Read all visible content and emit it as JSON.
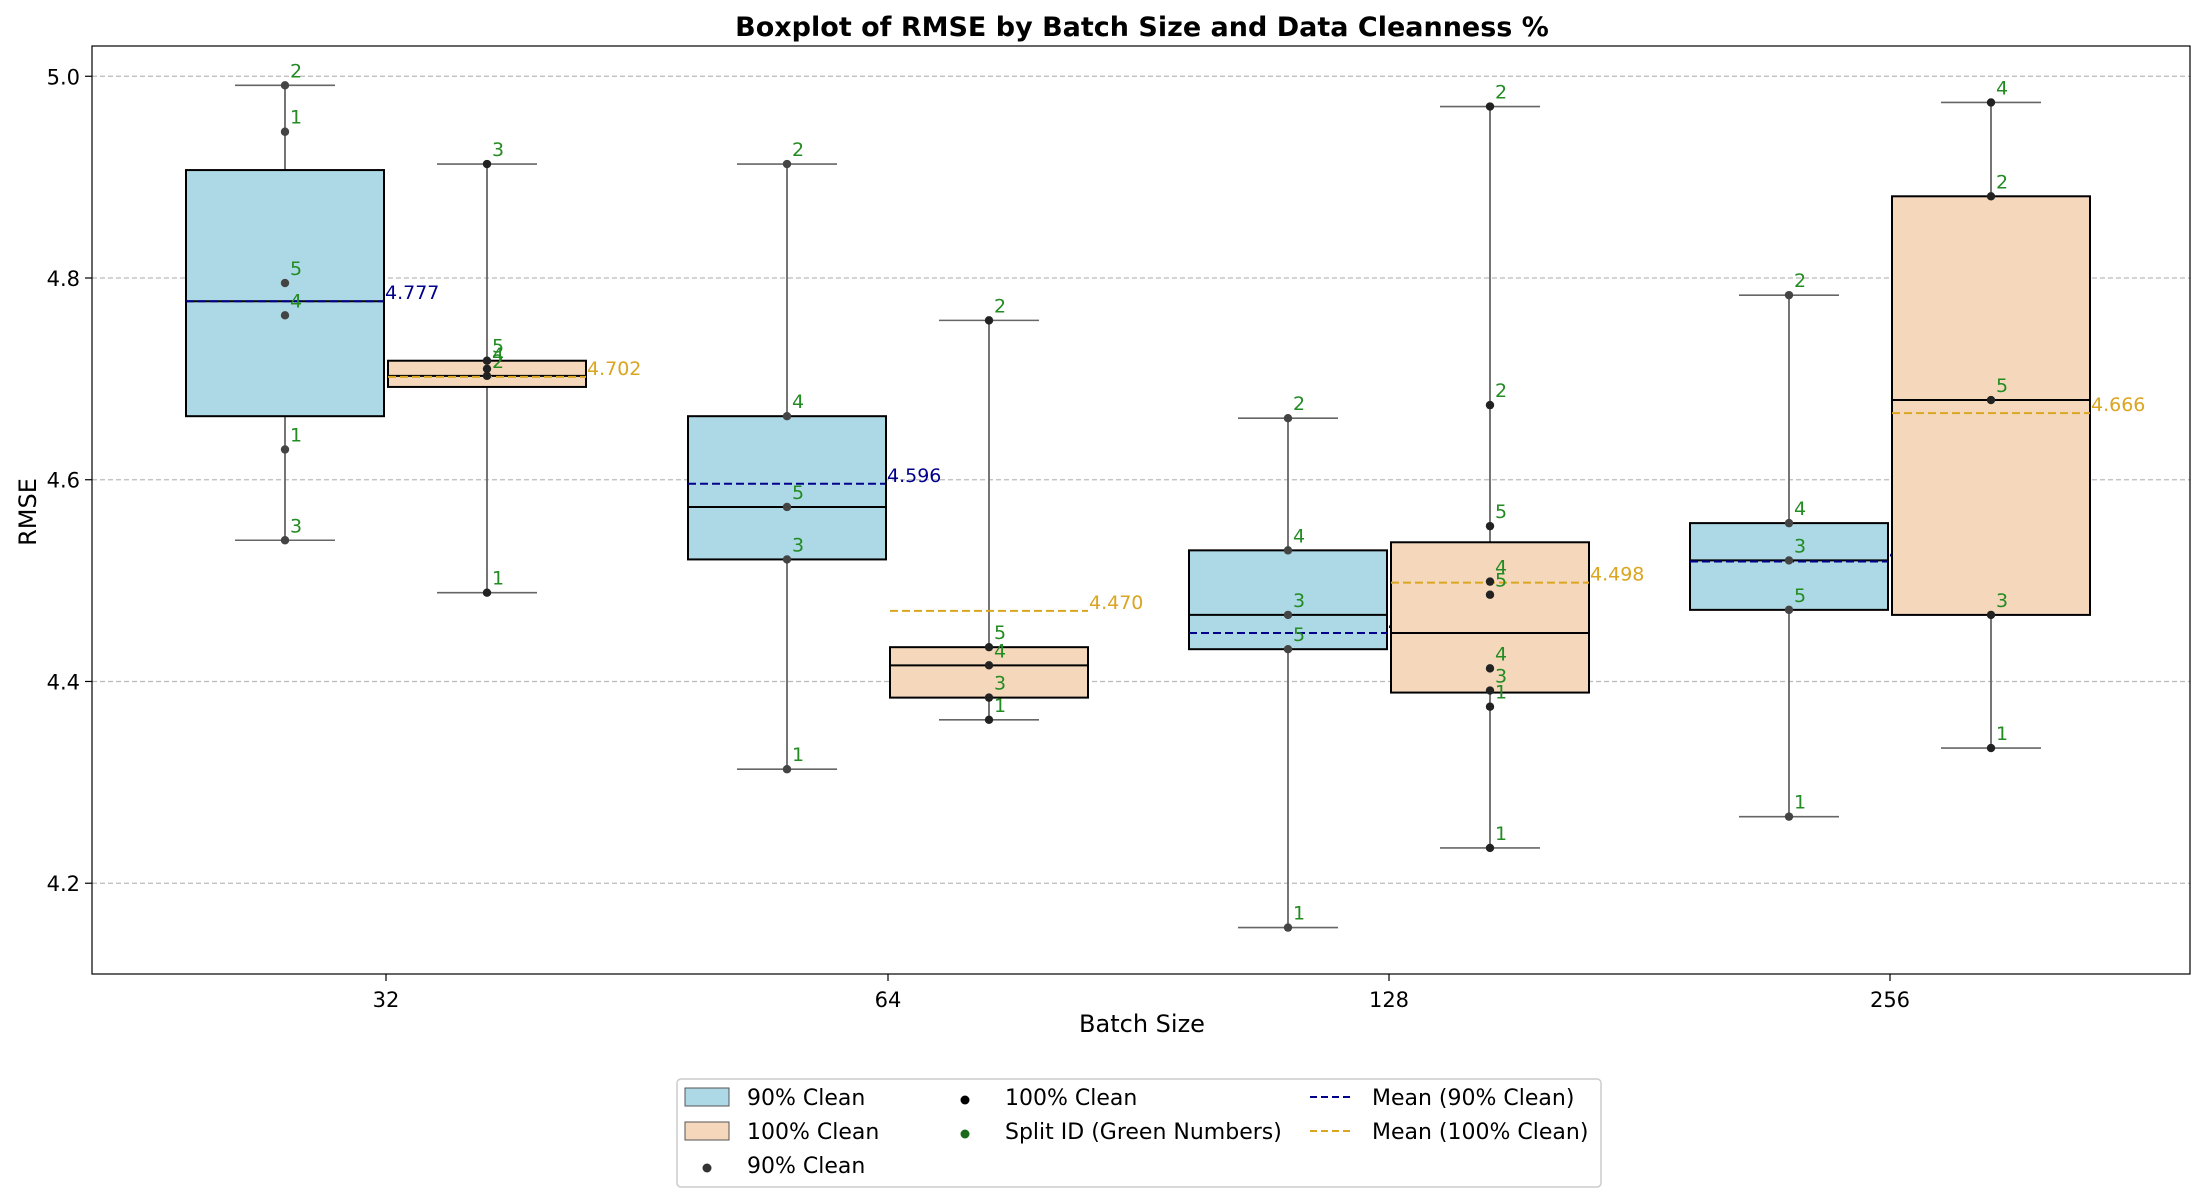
{
  "chart_data": {
    "type": "box",
    "title": "Boxplot of RMSE by Batch Size and Data Cleanness %",
    "xlabel": "Batch Size",
    "ylabel": "RMSE",
    "categories": [
      "32",
      "64",
      "128",
      "256"
    ],
    "ylim": [
      4.11,
      5.03
    ],
    "yticks": [
      "4.2",
      "4.4",
      "4.6",
      "4.8",
      "5.0"
    ],
    "grid": "y-dashed",
    "legend_position": "bottom-center",
    "series": [
      {
        "name": "90% Clean",
        "color": "#add8e6",
        "mean_color": "#00008b",
        "groups": [
          {
            "batch": "32",
            "whisker_low": 4.54,
            "q1": 4.663,
            "median": 4.777,
            "q3": 4.907,
            "whisker_high": 4.991,
            "mean": 4.777,
            "mean_label": "4.777",
            "points": [
              {
                "split": "1",
                "value": 4.945
              },
              {
                "split": "2",
                "value": 4.991
              },
              {
                "split": "3",
                "value": 4.54
              },
              {
                "split": "4",
                "value": 4.763
              },
              {
                "split": "5",
                "value": 4.795
              },
              {
                "split": "1",
                "value": 4.63
              }
            ]
          },
          {
            "batch": "64",
            "whisker_low": 4.313,
            "q1": 4.521,
            "median": 4.573,
            "q3": 4.663,
            "whisker_high": 4.913,
            "mean": 4.596,
            "mean_label": "4.596",
            "points": [
              {
                "split": "1",
                "value": 4.313
              },
              {
                "split": "2",
                "value": 4.913
              },
              {
                "split": "3",
                "value": 4.521
              },
              {
                "split": "4",
                "value": 4.663
              },
              {
                "split": "5",
                "value": 4.573
              }
            ]
          },
          {
            "batch": "128",
            "whisker_low": 4.156,
            "q1": 4.432,
            "median": 4.466,
            "q3": 4.53,
            "whisker_high": 4.661,
            "mean": 4.448,
            "mean_label": "4.448",
            "points": [
              {
                "split": "1",
                "value": 4.156
              },
              {
                "split": "2",
                "value": 4.661
              },
              {
                "split": "3",
                "value": 4.466
              },
              {
                "split": "4",
                "value": 4.53
              },
              {
                "split": "5",
                "value": 4.432
              }
            ]
          },
          {
            "batch": "256",
            "whisker_low": 4.266,
            "q1": 4.471,
            "median": 4.52,
            "q3": 4.557,
            "whisker_high": 4.783,
            "mean": 4.519,
            "mean_label": "4.519",
            "points": [
              {
                "split": "1",
                "value": 4.266
              },
              {
                "split": "2",
                "value": 4.783
              },
              {
                "split": "3",
                "value": 4.52
              },
              {
                "split": "4",
                "value": 4.557
              },
              {
                "split": "5",
                "value": 4.471
              }
            ]
          }
        ]
      },
      {
        "name": "100% Clean",
        "color": "#f5d8bc",
        "mean_color": "#daa520",
        "groups": [
          {
            "batch": "32",
            "whisker_low": 4.488,
            "q1": 4.692,
            "median": 4.703,
            "q3": 4.718,
            "whisker_high": 4.913,
            "mean": 4.702,
            "mean_label": "4.702",
            "points": [
              {
                "split": "1",
                "value": 4.488
              },
              {
                "split": "2",
                "value": 4.703
              },
              {
                "split": "3",
                "value": 4.913
              },
              {
                "split": "4",
                "value": 4.71
              },
              {
                "split": "5",
                "value": 4.718
              }
            ]
          },
          {
            "batch": "64",
            "whisker_low": 4.362,
            "q1": 4.384,
            "median": 4.416,
            "q3": 4.434,
            "whisker_high": 4.758,
            "mean": 4.47,
            "mean_label": "4.470",
            "points": [
              {
                "split": "1",
                "value": 4.362
              },
              {
                "split": "2",
                "value": 4.758
              },
              {
                "split": "3",
                "value": 4.384
              },
              {
                "split": "4",
                "value": 4.416
              },
              {
                "split": "5",
                "value": 4.434
              }
            ]
          },
          {
            "batch": "128",
            "whisker_low": 4.235,
            "q1": 4.389,
            "median": 4.448,
            "q3": 4.538,
            "whisker_high": 4.97,
            "mean": 4.498,
            "mean_label": "4.498",
            "points": [
              {
                "split": "1",
                "value": 4.235
              },
              {
                "split": "2",
                "value": 4.97
              },
              {
                "split": "2",
                "value": 4.674
              },
              {
                "split": "5",
                "value": 4.554
              },
              {
                "split": "4",
                "value": 4.499
              },
              {
                "split": "5",
                "value": 4.486
              },
              {
                "split": "4",
                "value": 4.413
              },
              {
                "split": "3",
                "value": 4.391
              },
              {
                "split": "1",
                "value": 4.375
              }
            ]
          },
          {
            "batch": "256",
            "whisker_low": 4.334,
            "q1": 4.466,
            "median": 4.679,
            "q3": 4.881,
            "whisker_high": 4.974,
            "mean": 4.666,
            "mean_label": "4.666",
            "points": [
              {
                "split": "1",
                "value": 4.334
              },
              {
                "split": "2",
                "value": 4.881
              },
              {
                "split": "3",
                "value": 4.466
              },
              {
                "split": "4",
                "value": 4.974
              },
              {
                "split": "5",
                "value": 4.679
              }
            ]
          }
        ]
      }
    ],
    "split_label_color": "#228b22"
  },
  "legend": {
    "items": [
      {
        "label": "90% Clean",
        "marker": "patch",
        "color": "#add8e6"
      },
      {
        "label": "100% Clean",
        "marker": "patch",
        "color": "#f5d8bc"
      },
      {
        "label": "90% Clean",
        "marker": "dot",
        "color": "#333333"
      },
      {
        "label": "100% Clean",
        "marker": "dot",
        "color": "#000000"
      },
      {
        "label": "Split ID (Green Numbers)",
        "marker": "dot",
        "color": "#1a6b1a"
      },
      {
        "label": "Mean (90% Clean)",
        "marker": "dash",
        "color": "#00008b"
      },
      {
        "label": "Mean (100% Clean)",
        "marker": "dash",
        "color": "#daa520"
      }
    ]
  }
}
